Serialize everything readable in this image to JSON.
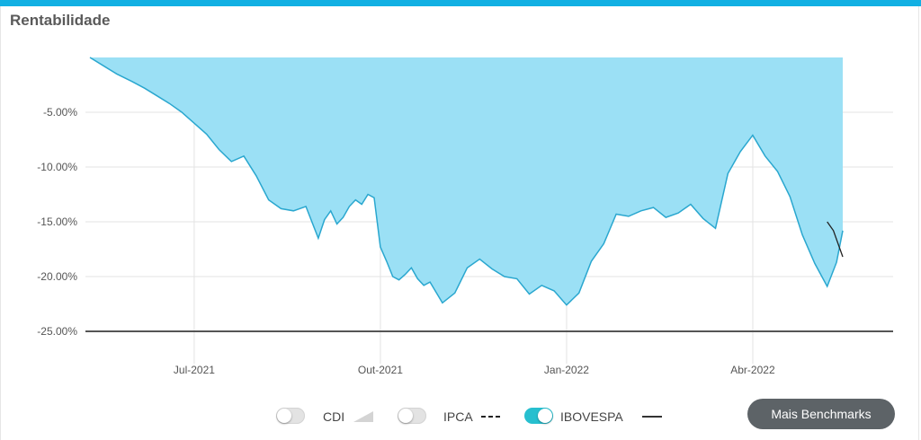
{
  "header": {
    "title": "Rentabilidade"
  },
  "colors": {
    "accent": "#12b0e3",
    "area_fill": "#9be0f5",
    "area_line": "#2aa7cf",
    "series_line": "#222222",
    "toggle_on": "#27bfcf",
    "button_bg": "#5d6367"
  },
  "chart_data": {
    "type": "area",
    "title": "",
    "xlabel": "",
    "ylabel": "",
    "ylim": [
      -25,
      0
    ],
    "yticks": [
      -5,
      -10,
      -15,
      -20,
      -25
    ],
    "ytick_labels": [
      "-5.00%",
      "-10.00%",
      "-15.00%",
      "-20.00%",
      "-25.00%"
    ],
    "xtick_labels": [
      "Jul-2021",
      "Out-2021",
      "Jan-2022",
      "Abr-2022"
    ],
    "xtick_positions": [
      1,
      4,
      7,
      10
    ],
    "xlim": [
      -0.68,
      11.45
    ],
    "grid": true,
    "series": [
      {
        "name": "IBOVESPA",
        "x": [
          -0.68,
          -0.45,
          -0.25,
          0.0,
          0.2,
          0.4,
          0.6,
          0.8,
          1.0,
          1.2,
          1.4,
          1.6,
          1.8,
          2.0,
          2.2,
          2.4,
          2.6,
          2.8,
          3.0,
          3.1,
          3.2,
          3.3,
          3.4,
          3.5,
          3.6,
          3.7,
          3.8,
          3.9,
          4.0,
          4.1,
          4.2,
          4.3,
          4.4,
          4.5,
          4.6,
          4.7,
          4.8,
          5.0,
          5.2,
          5.4,
          5.6,
          5.8,
          6.0,
          6.2,
          6.4,
          6.6,
          6.8,
          7.0,
          7.2,
          7.4,
          7.6,
          7.8,
          8.0,
          8.2,
          8.4,
          8.6,
          8.8,
          9.0,
          9.2,
          9.4,
          9.6,
          9.8,
          10.0,
          10.2,
          10.4,
          10.6,
          10.8,
          11.0,
          11.2,
          11.35,
          11.45
        ],
        "values": [
          0.0,
          -0.8,
          -1.5,
          -2.2,
          -2.8,
          -3.5,
          -4.2,
          -5.0,
          -6.0,
          -7.0,
          -8.4,
          -9.5,
          -9.0,
          -10.8,
          -13.0,
          -13.8,
          -14.0,
          -13.6,
          -16.5,
          -14.8,
          -14.0,
          -15.2,
          -14.6,
          -13.6,
          -13.0,
          -13.4,
          -12.5,
          -12.8,
          -17.3,
          -18.6,
          -20.0,
          -20.3,
          -19.8,
          -19.2,
          -20.2,
          -20.8,
          -20.5,
          -22.4,
          -21.5,
          -19.2,
          -18.4,
          -19.3,
          -20.0,
          -20.2,
          -21.6,
          -20.8,
          -21.3,
          -22.6,
          -21.5,
          -18.6,
          -17.0,
          -14.3,
          -14.5,
          -14.0,
          -13.7,
          -14.6,
          -14.2,
          -13.4,
          -14.7,
          -15.6,
          -10.6,
          -8.6,
          -7.1,
          -9.0,
          -10.4,
          -12.7,
          -16.2,
          -18.8,
          -20.9,
          -18.7,
          -15.8
        ]
      },
      {
        "name": "IBOVESPA",
        "x": [
          11.2,
          11.3,
          11.45
        ],
        "values": [
          -15.0,
          -15.8,
          -18.2
        ]
      }
    ]
  },
  "legend": {
    "items": [
      {
        "label": "CDI",
        "on": false
      },
      {
        "label": "IPCA",
        "on": false
      },
      {
        "label": "IBOVESPA",
        "on": true
      }
    ]
  },
  "actions": {
    "more_benchmarks": "Mais Benchmarks"
  }
}
